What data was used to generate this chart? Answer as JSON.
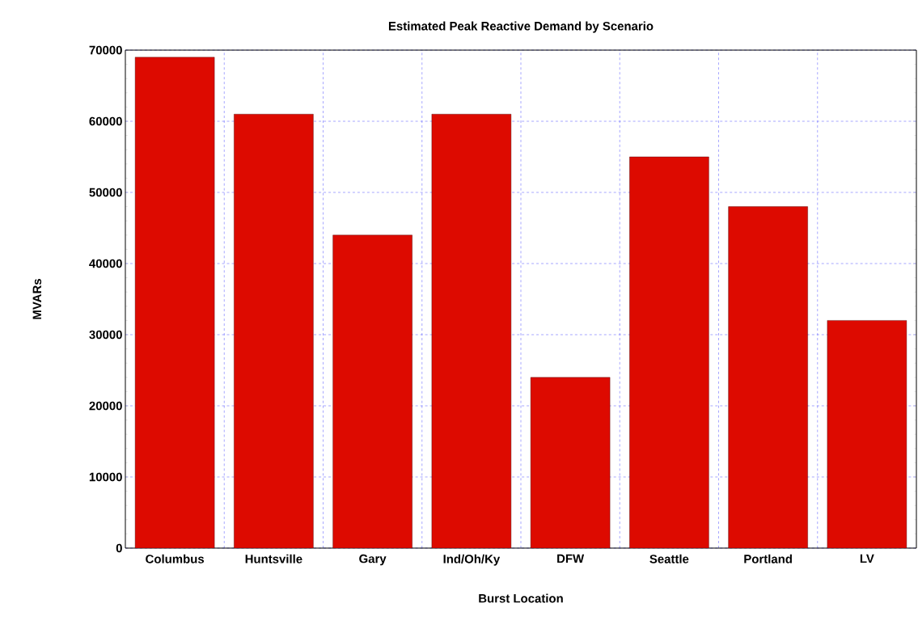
{
  "chart_data": {
    "type": "bar",
    "title": "Estimated Peak Reactive Demand by Scenario",
    "xlabel": "Burst Location",
    "ylabel": "MVARs",
    "categories": [
      "Columbus",
      "Huntsville",
      "Gary",
      "Ind/Oh/Ky",
      "DFW",
      "Seattle",
      "Portland",
      "LV"
    ],
    "values": [
      69000,
      61000,
      44000,
      61000,
      24000,
      55000,
      48000,
      32000
    ],
    "color": "#dd0a00",
    "ylim": [
      0,
      70000
    ],
    "yticks": [
      0,
      10000,
      20000,
      30000,
      40000,
      50000,
      60000,
      70000
    ],
    "grid": true
  }
}
